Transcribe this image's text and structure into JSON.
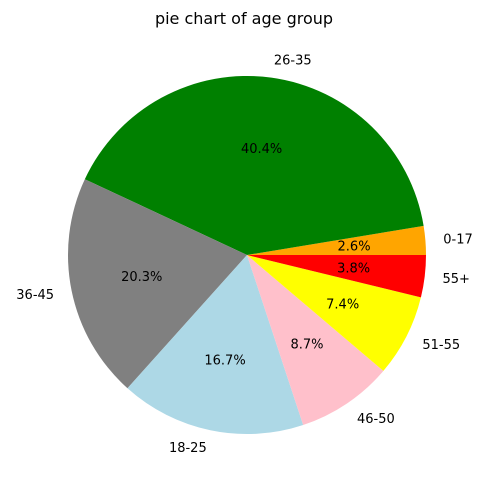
{
  "chart_data": {
    "type": "pie",
    "title": "pie chart of age group",
    "start_angle_deg": 0,
    "direction": "counterclockwise",
    "slices": [
      {
        "label": "0-17",
        "percent": 2.6,
        "percent_label": "2.6%",
        "color": "#FFA500"
      },
      {
        "label": "26-35",
        "percent": 40.4,
        "percent_label": "40.4%",
        "color": "#008000"
      },
      {
        "label": "36-45",
        "percent": 20.3,
        "percent_label": "20.3%",
        "color": "#808080"
      },
      {
        "label": "18-25",
        "percent": 16.7,
        "percent_label": "16.7%",
        "color": "#ADD8E6"
      },
      {
        "label": "46-50",
        "percent": 8.7,
        "percent_label": "8.7%",
        "color": "#FFC0CB"
      },
      {
        "label": "51-55",
        "percent": 7.4,
        "percent_label": "7.4%",
        "color": "#FFFF00"
      },
      {
        "label": "55+",
        "percent": 3.8,
        "percent_label": "3.8%",
        "color": "#FF0000"
      }
    ]
  }
}
